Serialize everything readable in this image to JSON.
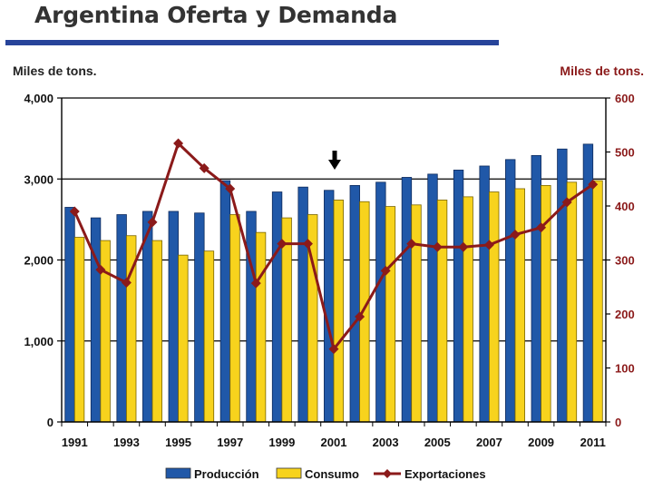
{
  "title": "Argentina Oferta y Demanda",
  "left_axis_unit": "Miles de tons.",
  "right_axis_unit": "Miles de tons.",
  "colors": {
    "produccion": "#2058a8",
    "consumo": "#f7d31d",
    "exportaciones": "#8b1a1a",
    "title_rule": "#27449a"
  },
  "chart_data": {
    "type": "bar+line",
    "title": "Argentina Oferta y Demanda",
    "years": [
      1991,
      1992,
      1993,
      1994,
      1995,
      1996,
      1997,
      1998,
      1999,
      2000,
      2001,
      2002,
      2003,
      2004,
      2005,
      2006,
      2007,
      2008,
      2009,
      2010,
      2011
    ],
    "x_tick_labels": [
      "1991",
      "1993",
      "1995",
      "1997",
      "1999",
      "2001",
      "2003",
      "2005",
      "2007",
      "2009",
      "2011"
    ],
    "left_axis": {
      "label": "Miles de tons.",
      "ylim": [
        0,
        4000
      ],
      "ticks": [
        "0",
        "1,000",
        "2,000",
        "3,000",
        "4,000"
      ]
    },
    "right_axis": {
      "label": "Miles de tons.",
      "ylim": [
        0,
        600
      ],
      "ticks": [
        "0",
        "100",
        "200",
        "300",
        "400",
        "500",
        "600"
      ]
    },
    "series": [
      {
        "name": "Producción",
        "type": "bar",
        "axis": "left",
        "values": [
          2650,
          2520,
          2560,
          2600,
          2600,
          2580,
          2980,
          2600,
          2840,
          2900,
          2860,
          2920,
          2960,
          3020,
          3060,
          3110,
          3160,
          3240,
          3290,
          3370,
          3430
        ]
      },
      {
        "name": "Consumo",
        "type": "bar",
        "axis": "left",
        "values": [
          2280,
          2240,
          2300,
          2240,
          2060,
          2110,
          2560,
          2340,
          2520,
          2560,
          2740,
          2720,
          2660,
          2680,
          2740,
          2780,
          2840,
          2880,
          2920,
          2960,
          2980
        ]
      },
      {
        "name": "Exportaciones",
        "type": "line",
        "axis": "right",
        "values": [
          390,
          282,
          258,
          370,
          516,
          470,
          432,
          257,
          330,
          330,
          135,
          195,
          280,
          330,
          324,
          324,
          328,
          347,
          360,
          407,
          440
        ]
      }
    ],
    "annotation": "down-arrow above 2001",
    "legend": [
      "Producción",
      "Consumo",
      "Exportaciones"
    ],
    "legend_position": "bottom",
    "grid": true
  }
}
